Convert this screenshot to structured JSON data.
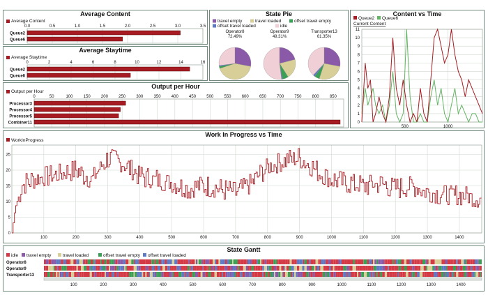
{
  "colors": {
    "bar": "#a61c22",
    "line": "#a61c22",
    "queue2": "#a61c22",
    "queue6": "#63b463",
    "idle": "#f0cfd6",
    "travel_empty": "#8a5aa8",
    "travel_loaded": "#d8cf98",
    "offset_travel_empty": "#3aa055",
    "offset_travel_loaded": "#5f79c2",
    "frame": "#6f8a7a"
  },
  "average_content": {
    "title": "Average Content",
    "legend": "Average Content",
    "ticks": [
      "0.0",
      "0.5",
      "1.0",
      "1.5",
      "2.0",
      "2.5",
      "3.0",
      "3.5"
    ],
    "axis_max": 3.5,
    "rows": [
      {
        "label": "Queue2",
        "value": 3.05
      },
      {
        "label": "Queue6",
        "value": 1.9
      }
    ]
  },
  "average_staytime": {
    "title": "Average Staytime",
    "legend": "Average Staytime",
    "ticks": [
      "0",
      "2",
      "4",
      "6",
      "8",
      "10",
      "12",
      "14",
      "16"
    ],
    "axis_max": 16,
    "rows": [
      {
        "label": "Queue2",
        "value": 14.8
      },
      {
        "label": "Queue6",
        "value": 9.4
      }
    ]
  },
  "output_per_hour": {
    "title": "Output per Hour",
    "legend": "Output per Hour",
    "ticks": [
      "0",
      "50",
      "100",
      "150",
      "200",
      "250",
      "300",
      "350",
      "400",
      "450",
      "500",
      "550",
      "600",
      "650",
      "700",
      "750",
      "800",
      "850"
    ],
    "axis_max": 880,
    "rows": [
      {
        "label": "Processor3",
        "value": 260
      },
      {
        "label": "Processor4",
        "value": 245
      },
      {
        "label": "Processor5",
        "value": 240
      },
      {
        "label": "Combiner11",
        "value": 870
      }
    ]
  },
  "state_pie": {
    "title": "State Pie",
    "legend": [
      {
        "label": "travel empty",
        "color": "#8a5aa8"
      },
      {
        "label": "travel loaded",
        "color": "#d8cf98"
      },
      {
        "label": "offset travel empty",
        "color": "#3aa055"
      },
      {
        "label": "offset travel loaded",
        "color": "#5f79c2"
      },
      {
        "label": "idle",
        "color": "#f0cfd6"
      }
    ],
    "pies": [
      {
        "name": "Operator8",
        "pct": "72.49%",
        "slices": [
          0.28,
          0.42,
          0.02,
          0.01,
          0.27
        ]
      },
      {
        "name": "Operator9",
        "pct": "49.31%",
        "slices": [
          0.21,
          0.2,
          0.06,
          0.01,
          0.52
        ]
      },
      {
        "name": "Transporter13",
        "pct": "61.35%",
        "slices": [
          0.28,
          0.27,
          0.05,
          0.02,
          0.38
        ]
      }
    ]
  },
  "content_vs_time": {
    "title": "Content vs Time",
    "legend": [
      "Queue2",
      "Queue6"
    ],
    "sublabel": "Current Content",
    "yticks": [
      "0",
      "1",
      "2",
      "3",
      "4",
      "5",
      "6",
      "7",
      "8",
      "9",
      "10",
      "11"
    ],
    "xticks": [
      {
        "label": "500",
        "v": 500
      },
      {
        "label": "1000",
        "v": 1000
      }
    ],
    "xmax": 1400,
    "ymax": 11,
    "queue2": [
      [
        0,
        0
      ],
      [
        40,
        7
      ],
      [
        70,
        4
      ],
      [
        100,
        5
      ],
      [
        130,
        0
      ],
      [
        160,
        1
      ],
      [
        200,
        3
      ],
      [
        240,
        1
      ],
      [
        280,
        0
      ],
      [
        320,
        3
      ],
      [
        360,
        10
      ],
      [
        400,
        4
      ],
      [
        440,
        2
      ],
      [
        480,
        5
      ],
      [
        520,
        2
      ],
      [
        560,
        0
      ],
      [
        600,
        1
      ],
      [
        640,
        0
      ],
      [
        680,
        4
      ],
      [
        720,
        1
      ],
      [
        760,
        0
      ],
      [
        800,
        5
      ],
      [
        840,
        10
      ],
      [
        880,
        11
      ],
      [
        920,
        9
      ],
      [
        960,
        7
      ],
      [
        1000,
        8
      ],
      [
        1040,
        11
      ],
      [
        1080,
        8
      ],
      [
        1120,
        6
      ],
      [
        1160,
        5
      ],
      [
        1200,
        3
      ],
      [
        1240,
        5
      ],
      [
        1280,
        4
      ],
      [
        1320,
        3
      ],
      [
        1360,
        2
      ],
      [
        1400,
        1
      ]
    ],
    "queue6": [
      [
        0,
        1
      ],
      [
        40,
        4
      ],
      [
        70,
        2
      ],
      [
        100,
        3
      ],
      [
        130,
        4
      ],
      [
        160,
        2
      ],
      [
        200,
        1
      ],
      [
        240,
        2
      ],
      [
        280,
        0
      ],
      [
        320,
        2
      ],
      [
        360,
        6
      ],
      [
        400,
        1
      ],
      [
        440,
        0
      ],
      [
        480,
        1
      ],
      [
        520,
        11
      ],
      [
        560,
        3
      ],
      [
        600,
        0
      ],
      [
        640,
        0
      ],
      [
        680,
        1
      ],
      [
        720,
        0
      ],
      [
        760,
        0
      ],
      [
        800,
        3
      ],
      [
        840,
        5
      ],
      [
        880,
        2
      ],
      [
        920,
        4
      ],
      [
        960,
        1
      ],
      [
        1000,
        0
      ],
      [
        1040,
        2
      ],
      [
        1080,
        4
      ],
      [
        1120,
        1
      ],
      [
        1160,
        2
      ],
      [
        1200,
        1
      ],
      [
        1240,
        0
      ],
      [
        1280,
        1
      ],
      [
        1320,
        1
      ],
      [
        1360,
        0
      ],
      [
        1400,
        0
      ]
    ]
  },
  "wip": {
    "title": "Work In Progress vs Time",
    "legend": "WorkInProgress",
    "yticks": [
      {
        "label": "0",
        "v": 0
      },
      {
        "label": "5",
        "v": 5
      },
      {
        "label": "10",
        "v": 10
      },
      {
        "label": "15",
        "v": 15
      },
      {
        "label": "20",
        "v": 20
      },
      {
        "label": "25",
        "v": 25
      }
    ],
    "xticks": [
      {
        "label": "100",
        "v": 100
      },
      {
        "label": "200",
        "v": 200
      },
      {
        "label": "300",
        "v": 300
      },
      {
        "label": "400",
        "v": 400
      },
      {
        "label": "500",
        "v": 500
      },
      {
        "label": "600",
        "v": 600
      },
      {
        "label": "700",
        "v": 700
      },
      {
        "label": "800",
        "v": 800
      },
      {
        "label": "900",
        "v": 900
      },
      {
        "label": "1000",
        "v": 1000
      },
      {
        "label": "1100",
        "v": 1100
      },
      {
        "label": "1200",
        "v": 1200
      },
      {
        "label": "1300",
        "v": 1300
      },
      {
        "label": "1400",
        "v": 1400
      }
    ],
    "xmax": 1470,
    "ymax": 28,
    "anchors": [
      [
        0,
        0
      ],
      [
        10,
        8
      ],
      [
        30,
        15
      ],
      [
        60,
        17
      ],
      [
        100,
        18
      ],
      [
        150,
        19
      ],
      [
        200,
        20
      ],
      [
        250,
        17
      ],
      [
        300,
        24
      ],
      [
        350,
        22
      ],
      [
        400,
        18
      ],
      [
        450,
        17
      ],
      [
        500,
        16
      ],
      [
        550,
        14
      ],
      [
        600,
        15
      ],
      [
        650,
        14
      ],
      [
        700,
        13
      ],
      [
        750,
        16
      ],
      [
        800,
        21
      ],
      [
        850,
        23
      ],
      [
        900,
        24
      ],
      [
        950,
        20
      ],
      [
        1000,
        17
      ],
      [
        1050,
        16
      ],
      [
        1100,
        15
      ],
      [
        1150,
        16
      ],
      [
        1200,
        14
      ],
      [
        1250,
        15
      ],
      [
        1300,
        13
      ],
      [
        1350,
        12
      ],
      [
        1400,
        12
      ],
      [
        1470,
        11
      ]
    ]
  },
  "gantt": {
    "title": "State Gantt",
    "legend": [
      {
        "label": "idle",
        "color": "#d33a45"
      },
      {
        "label": "travel empty",
        "color": "#8a5aa8"
      },
      {
        "label": "travel loaded",
        "color": "#d8cf98"
      },
      {
        "label": "offset travel empty",
        "color": "#3aa055"
      },
      {
        "label": "offset travel loaded",
        "color": "#5f79c2"
      }
    ],
    "rows": [
      "Operator8",
      "Operator9",
      "Transporter13"
    ],
    "xticks": [
      {
        "label": "100",
        "v": 100
      },
      {
        "label": "200",
        "v": 200
      },
      {
        "label": "300",
        "v": 300
      },
      {
        "label": "400",
        "v": 400
      },
      {
        "label": "500",
        "v": 500
      },
      {
        "label": "600",
        "v": 600
      },
      {
        "label": "700",
        "v": 700
      },
      {
        "label": "800",
        "v": 800
      },
      {
        "label": "900",
        "v": 900
      },
      {
        "label": "1000",
        "v": 1000
      },
      {
        "label": "1100",
        "v": 1100
      },
      {
        "label": "1200",
        "v": 1200
      },
      {
        "label": "1300",
        "v": 1300
      },
      {
        "label": "1400",
        "v": 1400
      }
    ],
    "xmax": 1470
  }
}
